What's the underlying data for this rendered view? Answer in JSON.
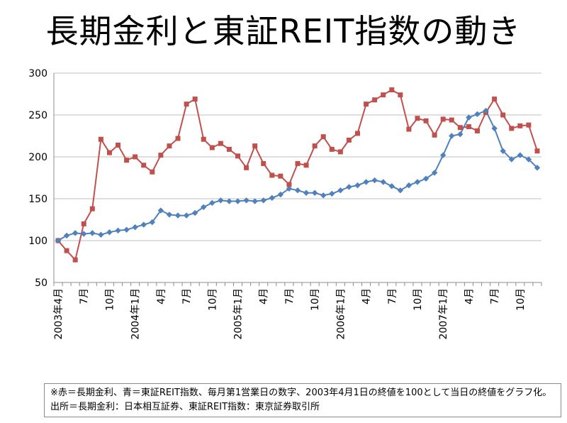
{
  "title": "長期金利と東証REIT指数の動き",
  "note": "※赤＝長期金利、青＝東証REIT指数、毎月第1営業日の数字、2003年4月1日の終値を100として当日の終値をグラフ化。出所＝長期金利：日本相互証券、東証REIT指数：東京証券取引所",
  "chart_data": {
    "type": "line",
    "title": "長期金利と東証REIT指数の動き",
    "xlabel": "",
    "ylabel": "",
    "ylim": [
      50,
      300
    ],
    "yticks": [
      50,
      100,
      150,
      200,
      250,
      300
    ],
    "grid": true,
    "x": [
      "2003年4月",
      "5月",
      "6月",
      "7月",
      "8月",
      "9月",
      "10月",
      "11月",
      "12月",
      "2004年1月",
      "2月",
      "3月",
      "4月",
      "5月",
      "6月",
      "7月",
      "8月",
      "9月",
      "10月",
      "11月",
      "12月",
      "2005年1月",
      "2月",
      "3月",
      "4月",
      "5月",
      "6月",
      "7月",
      "8月",
      "9月",
      "10月",
      "11月",
      "12月",
      "2006年1月",
      "2月",
      "3月",
      "4月",
      "5月",
      "6月",
      "7月",
      "8月",
      "9月",
      "10月",
      "11月",
      "12月",
      "2007年1月",
      "2月",
      "3月",
      "4月",
      "5月",
      "6月",
      "7月",
      "8月",
      "9月",
      "10月",
      "11月",
      "12月"
    ],
    "x_tick_labels": [
      "2003年4月",
      "",
      "",
      "7月",
      "",
      "",
      "10月",
      "",
      "",
      "2004年1月",
      "",
      "",
      "4月",
      "",
      "",
      "7月",
      "",
      "",
      "10月",
      "",
      "",
      "2005年1月",
      "",
      "",
      "4月",
      "",
      "",
      "7月",
      "",
      "",
      "10月",
      "",
      "",
      "2006年1月",
      "",
      "",
      "4月",
      "",
      "",
      "7月",
      "",
      "",
      "10月",
      "",
      "",
      "2007年1月",
      "",
      "",
      "4月",
      "",
      "",
      "7月",
      "",
      "",
      "10月",
      "",
      ""
    ],
    "series": [
      {
        "color": "#c0504d",
        "marker": "square",
        "values": [
          100,
          88,
          77,
          120,
          138,
          221,
          205,
          214,
          196,
          200,
          190,
          182,
          202,
          213,
          222,
          263,
          269,
          221,
          211,
          216,
          209,
          201,
          187,
          213,
          192,
          178,
          177,
          167,
          192,
          190,
          213,
          224,
          209,
          206,
          220,
          228,
          263,
          268,
          274,
          280,
          274,
          233,
          246,
          243,
          226,
          245,
          244,
          235,
          236,
          231,
          253,
          269,
          250,
          234,
          237,
          238,
          207
        ]
      },
      {
        "color": "#4f81bd",
        "marker": "diamond",
        "values": [
          100,
          106,
          109,
          108,
          109,
          107,
          110,
          112,
          113,
          116,
          119,
          122,
          136,
          131,
          130,
          130,
          133,
          140,
          145,
          148,
          147,
          147,
          148,
          147,
          148,
          151,
          155,
          162,
          160,
          157,
          157,
          154,
          156,
          160,
          164,
          166,
          170,
          172,
          170,
          165,
          160,
          166,
          170,
          174,
          181,
          202,
          225,
          227,
          247,
          251,
          255,
          234,
          207,
          197,
          202,
          197,
          187
        ]
      }
    ]
  }
}
